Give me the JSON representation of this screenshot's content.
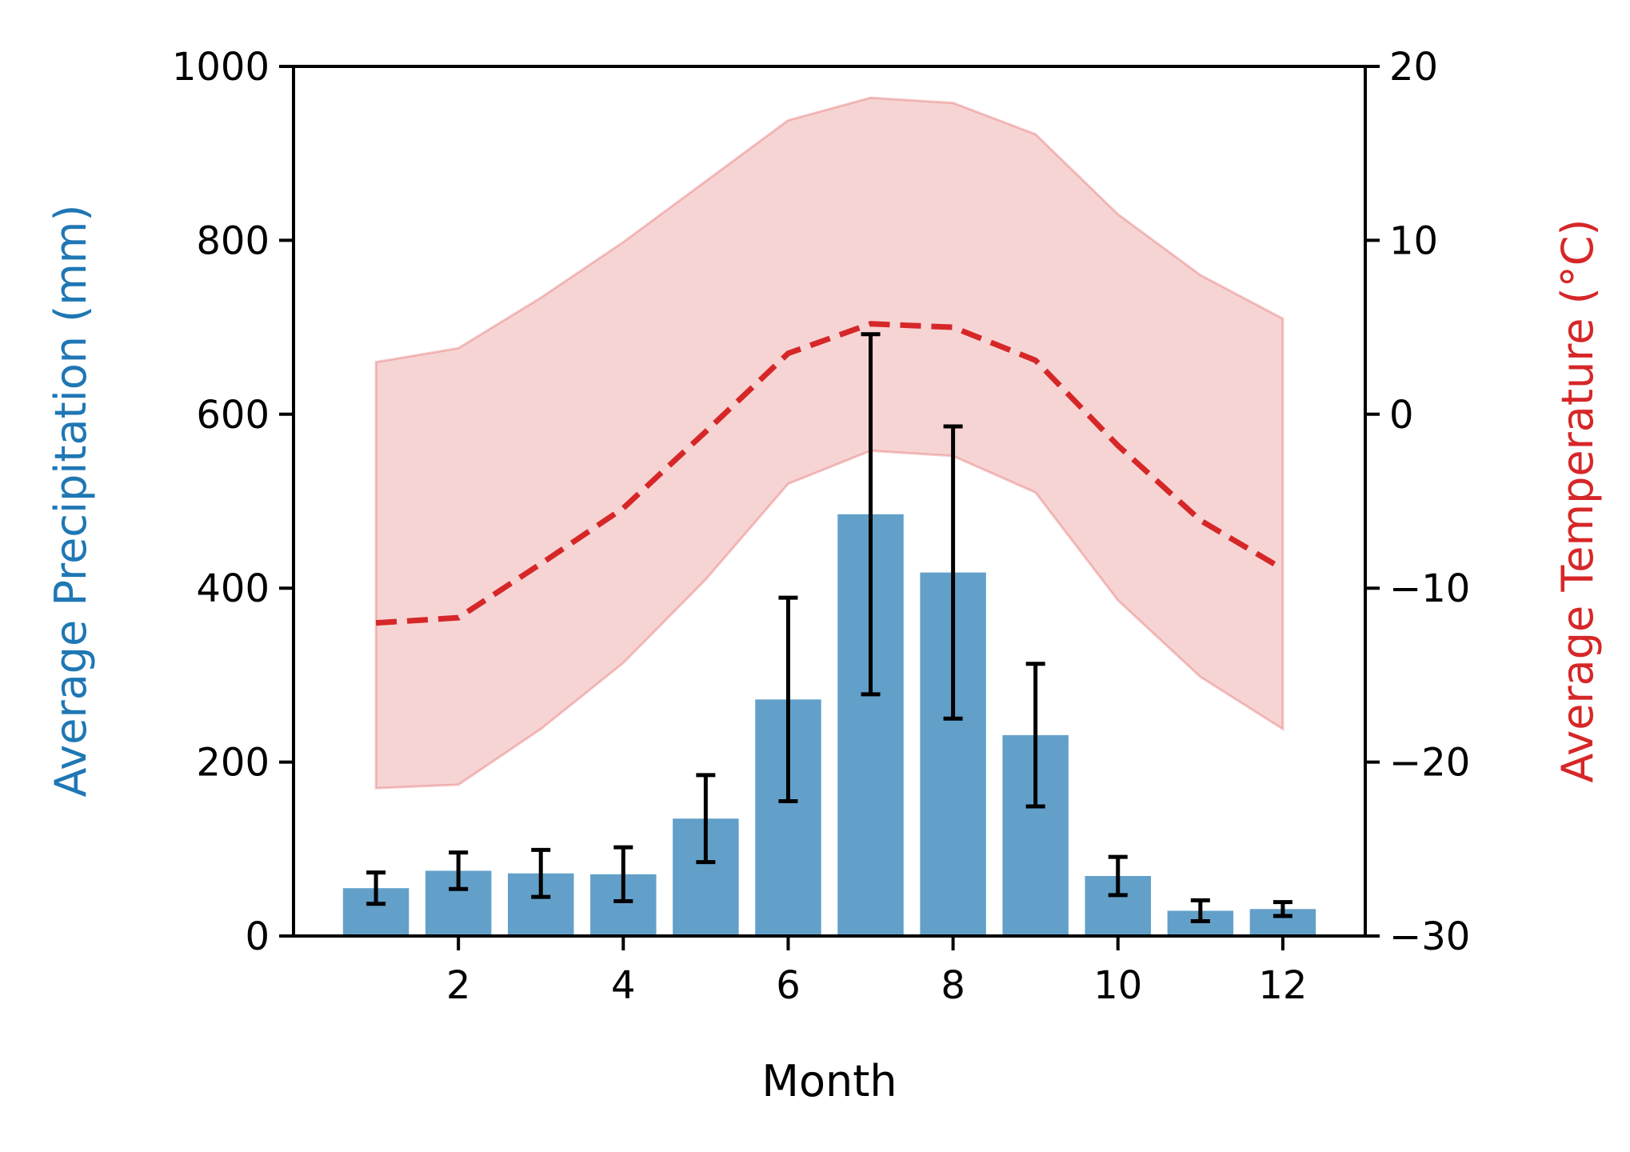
{
  "chart_data": {
    "type": "bar",
    "xlabel": "Month",
    "xlim": [
      0.0,
      13.0
    ],
    "xticks": [
      2,
      4,
      6,
      8,
      10,
      12
    ],
    "months": [
      1,
      2,
      3,
      4,
      5,
      6,
      7,
      8,
      9,
      10,
      11,
      12
    ],
    "precipitation": {
      "axis_label": "Average Precipitation (mm)",
      "color": "#1f77b4",
      "ylim": [
        0,
        1000
      ],
      "yticks": [
        0,
        200,
        400,
        600,
        800,
        1000
      ],
      "values": [
        55,
        75,
        72,
        71,
        135,
        272,
        485,
        418,
        231,
        69,
        29,
        31
      ],
      "error": [
        18,
        21,
        27,
        31,
        50,
        117,
        207,
        168,
        82,
        22,
        12,
        8
      ]
    },
    "temperature": {
      "axis_label": "Average Temperature (°C)",
      "color": "#d62728",
      "ylim": [
        -30,
        20
      ],
      "yticks": [
        -30,
        -20,
        -10,
        0,
        10,
        20
      ],
      "tick_labels": [
        "−30",
        "−20",
        "−10",
        "0",
        "10",
        "20"
      ],
      "mean": [
        -12.0,
        -11.7,
        -8.6,
        -5.4,
        -1.0,
        3.5,
        5.2,
        5.0,
        3.1,
        -1.8,
        -6.1,
        -8.9
      ],
      "upper": [
        3.0,
        3.8,
        6.7,
        9.9,
        13.4,
        16.9,
        18.2,
        17.9,
        16.1,
        11.5,
        8.0,
        5.5
      ],
      "lower": [
        -21.5,
        -21.3,
        -18.1,
        -14.3,
        -9.5,
        -4.0,
        -2.1,
        -2.4,
        -4.5,
        -10.7,
        -15.1,
        -18.1
      ]
    }
  }
}
